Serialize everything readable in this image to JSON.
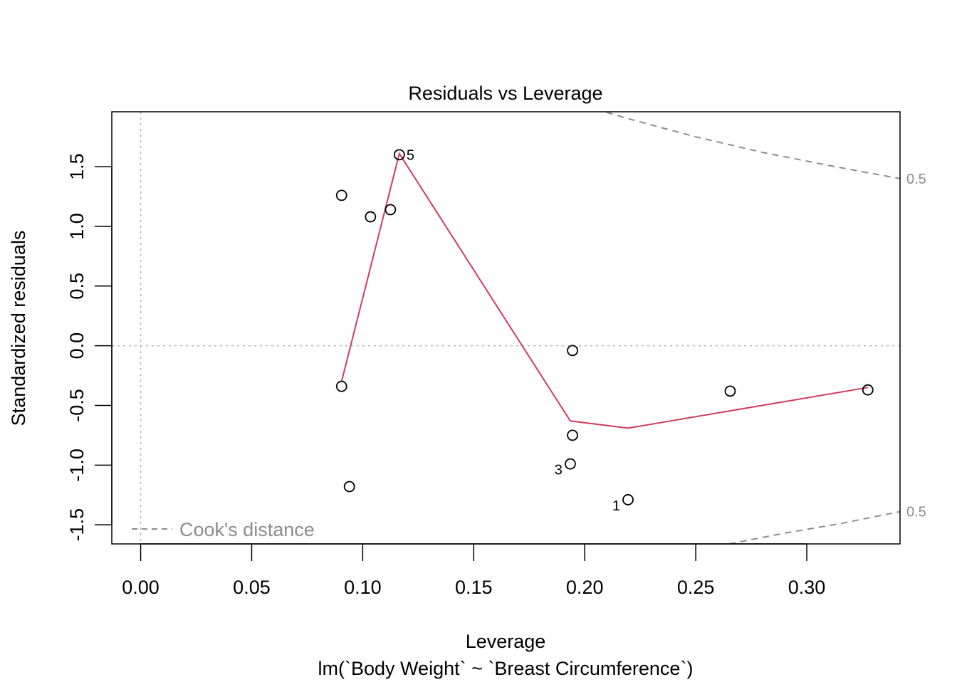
{
  "chart_data": {
    "type": "scatter",
    "title": "Residuals vs Leverage",
    "xlabel": "Leverage",
    "subtitle": "lm(`Body Weight` ~ `Breast Circumference`)",
    "ylabel": "Standardized residuals",
    "xlim": [
      -0.013,
      0.342
    ],
    "ylim": [
      -1.66,
      1.96
    ],
    "x_ticks": [
      0.0,
      0.05,
      0.1,
      0.15,
      0.2,
      0.25,
      0.3
    ],
    "x_tick_labels": [
      "0.00",
      "0.05",
      "0.10",
      "0.15",
      "0.20",
      "0.25",
      "0.30"
    ],
    "y_ticks": [
      -1.5,
      -1.0,
      -0.5,
      0.0,
      0.5,
      1.0,
      1.5
    ],
    "y_tick_labels": [
      "-1.5",
      "-1.0",
      "-0.5",
      "0.0",
      "0.5",
      "1.0",
      "1.5"
    ],
    "points": [
      {
        "x": 0.0905,
        "y": 1.26,
        "label": ""
      },
      {
        "x": 0.1035,
        "y": 1.08,
        "label": ""
      },
      {
        "x": 0.1125,
        "y": 1.14,
        "label": ""
      },
      {
        "x": 0.1165,
        "y": 1.6,
        "label": "5"
      },
      {
        "x": 0.0905,
        "y": -0.34,
        "label": ""
      },
      {
        "x": 0.094,
        "y": -1.18,
        "label": ""
      },
      {
        "x": 0.1945,
        "y": -0.04,
        "label": ""
      },
      {
        "x": 0.1945,
        "y": -0.75,
        "label": ""
      },
      {
        "x": 0.1935,
        "y": -0.99,
        "label": "3"
      },
      {
        "x": 0.2195,
        "y": -1.29,
        "label": "1"
      },
      {
        "x": 0.2655,
        "y": -0.38,
        "label": ""
      },
      {
        "x": 0.3275,
        "y": -0.37,
        "label": ""
      }
    ],
    "smooth_line": {
      "color": "#d03c5e",
      "x": [
        0.0905,
        0.1165,
        0.1935,
        0.2195,
        0.3275
      ],
      "y": [
        -0.3,
        1.61,
        -0.63,
        -0.69,
        -0.35
      ]
    },
    "reference_lines": {
      "h": 0.0,
      "v": 0.0,
      "color": "#b3b3b3"
    },
    "cooks_distance": {
      "level_label": "0.5",
      "color": "#8c8c8c",
      "upper": {
        "x": [
          0.2,
          0.22,
          0.25,
          0.28,
          0.31,
          0.342
        ],
        "y": [
          2.01,
          1.9,
          1.75,
          1.62,
          1.51,
          1.4
        ]
      },
      "lower": {
        "x": [
          0.265,
          0.29,
          0.315,
          0.342
        ],
        "y": [
          -1.66,
          -1.57,
          -1.49,
          -1.39
        ]
      }
    },
    "legend": {
      "label": "Cook's distance",
      "position": "bottom-left"
    },
    "grid": false
  }
}
